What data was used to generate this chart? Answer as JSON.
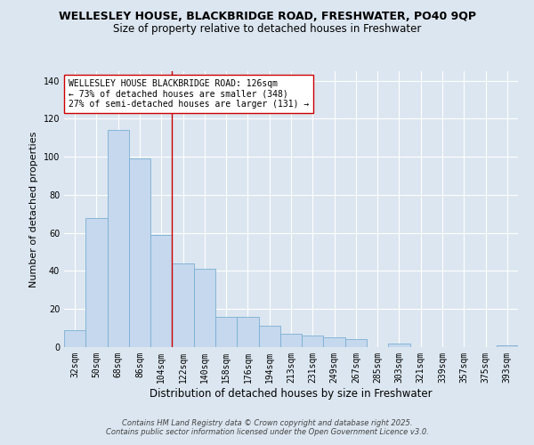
{
  "title": "WELLESLEY HOUSE, BLACKBRIDGE ROAD, FRESHWATER, PO40 9QP",
  "subtitle": "Size of property relative to detached houses in Freshwater",
  "xlabel": "Distribution of detached houses by size in Freshwater",
  "ylabel": "Number of detached properties",
  "categories": [
    "32sqm",
    "50sqm",
    "68sqm",
    "86sqm",
    "104sqm",
    "122sqm",
    "140sqm",
    "158sqm",
    "176sqm",
    "194sqm",
    "213sqm",
    "231sqm",
    "249sqm",
    "267sqm",
    "285sqm",
    "303sqm",
    "321sqm",
    "339sqm",
    "357sqm",
    "375sqm",
    "393sqm"
  ],
  "values": [
    9,
    68,
    114,
    99,
    59,
    44,
    41,
    16,
    16,
    11,
    7,
    6,
    5,
    4,
    0,
    2,
    0,
    0,
    0,
    0,
    1
  ],
  "bar_color": "#c5d8ed",
  "bar_edge_color": "#7bafd4",
  "vline_x_index": 5,
  "vline_color": "#cc0000",
  "annotation_text": "WELLESLEY HOUSE BLACKBRIDGE ROAD: 126sqm\n← 73% of detached houses are smaller (348)\n27% of semi-detached houses are larger (131) →",
  "annotation_box_color": "#ffffff",
  "annotation_box_edge": "#cc0000",
  "ylim": [
    0,
    145
  ],
  "yticks": [
    0,
    20,
    40,
    60,
    80,
    100,
    120,
    140
  ],
  "background_color": "#dce6f0",
  "plot_bg_color": "#dce6f0",
  "grid_color": "#ffffff",
  "footer_line1": "Contains HM Land Registry data © Crown copyright and database right 2025.",
  "footer_line2": "Contains public sector information licensed under the Open Government Licence v3.0.",
  "title_fontsize": 9,
  "subtitle_fontsize": 8.5,
  "tick_fontsize": 7,
  "ylabel_fontsize": 8,
  "xlabel_fontsize": 8.5,
  "annotation_fontsize": 7,
  "footer_fontsize": 6
}
